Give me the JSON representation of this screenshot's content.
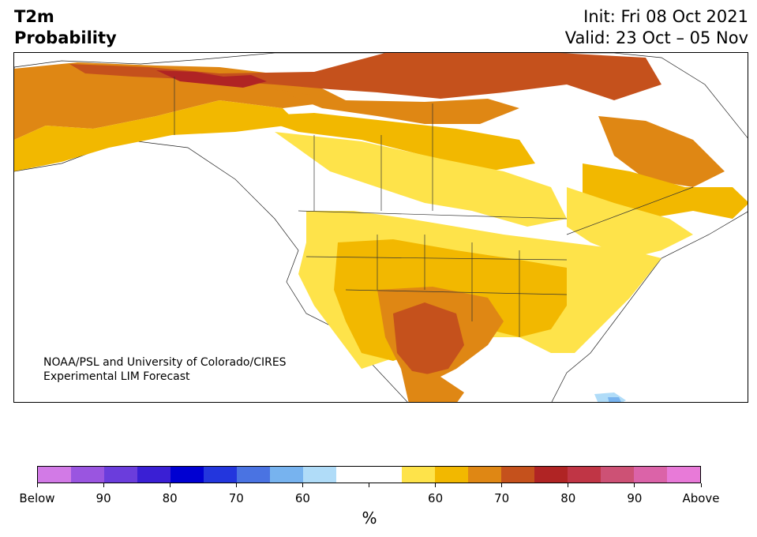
{
  "title": {
    "left_line1": "T2m",
    "left_line2": "Probability",
    "init": "Init: Fri 08 Oct 2021",
    "valid": "Valid: 23 Oct – 05 Nov"
  },
  "credit": {
    "line1": "NOAA/PSL and University of Colorado/CIRES",
    "line2": "Experimental LIM Forecast"
  },
  "colorbar": {
    "colors": [
      "#d27ae6",
      "#9a55e0",
      "#6b3ddc",
      "#3a1fd4",
      "#0000d2",
      "#2336dd",
      "#4a73e2",
      "#77b3ef",
      "#b0dcf8",
      "#ffffff",
      "#ffffff",
      "#fee34a",
      "#f2b800",
      "#df8714",
      "#c5511c",
      "#b02424",
      "#c03545",
      "#cd5175",
      "#db63a8",
      "#e87ad8"
    ],
    "labels": [
      "Below",
      "90",
      "80",
      "70",
      "60",
      "",
      "60",
      "70",
      "80",
      "90",
      "Above"
    ],
    "unit": "%"
  },
  "map_colors": {
    "p60": "#fee34a",
    "p70": "#f2b800",
    "p80": "#df8714",
    "p90": "#c5511c",
    "above": "#b02424",
    "below_light": "#b0dcf8",
    "below_mid": "#77b3ef"
  }
}
